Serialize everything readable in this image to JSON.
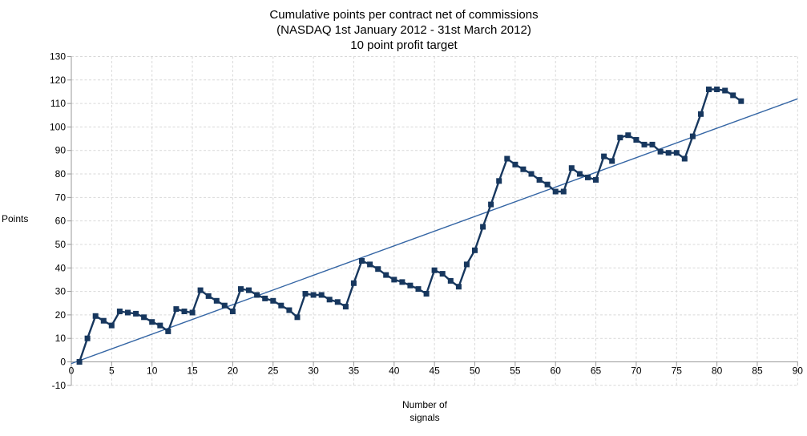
{
  "chart_data": {
    "type": "line",
    "title_lines": [
      "Cumulative points per contract net of commissions",
      "(NASDAQ 1st January 2012 - 31st March 2012)",
      "10 point profit target"
    ],
    "ylabel": "Points",
    "xlabel_lines": [
      "Number of",
      "signals"
    ],
    "x_axis": {
      "min": 0,
      "max": 90,
      "tick_step": 5,
      "tick_labels": [
        "0",
        "5",
        "10",
        "15",
        "20",
        "25",
        "30",
        "35",
        "40",
        "45",
        "50",
        "55",
        "60",
        "65",
        "70",
        "75",
        "80",
        "85",
        "90"
      ]
    },
    "y_axis": {
      "min": -10,
      "max": 130,
      "tick_step": 10,
      "tick_labels": [
        "-10",
        "0",
        "10",
        "20",
        "30",
        "40",
        "50",
        "60",
        "70",
        "80",
        "90",
        "100",
        "110",
        "120",
        "130"
      ]
    },
    "grid": true,
    "legend": "none",
    "series": [
      {
        "name": "Cumulative points",
        "style": "line+markers",
        "marker": "square",
        "color": "#17375e",
        "x": [
          1,
          2,
          3,
          4,
          5,
          6,
          7,
          8,
          9,
          10,
          11,
          12,
          13,
          14,
          15,
          16,
          17,
          18,
          19,
          20,
          21,
          22,
          23,
          24,
          25,
          26,
          27,
          28,
          29,
          30,
          31,
          32,
          33,
          34,
          35,
          36,
          37,
          38,
          39,
          40,
          41,
          42,
          43,
          44,
          45,
          46,
          47,
          48,
          49,
          50,
          51,
          52,
          53,
          54,
          55,
          56,
          57,
          58,
          59,
          60,
          61,
          62,
          63,
          64,
          65,
          66,
          67,
          68,
          69,
          70,
          71,
          72,
          73,
          74,
          75,
          76,
          77,
          78,
          79,
          80,
          81,
          82,
          83
        ],
        "y": [
          0,
          10,
          19.5,
          17.5,
          15.5,
          21.5,
          21,
          20.5,
          19,
          17,
          15.5,
          13,
          22.5,
          21.5,
          21,
          30.5,
          28,
          26,
          24,
          21.5,
          31,
          30.5,
          28.5,
          27,
          26,
          24,
          22,
          19,
          29,
          28.5,
          28.5,
          26.5,
          25.5,
          23.5,
          33.5,
          43,
          41.5,
          39.5,
          37,
          35,
          34,
          32.5,
          31,
          29,
          39,
          37.5,
          34.5,
          32,
          41.5,
          47.5,
          57.5,
          67,
          77,
          86.5,
          84,
          82,
          80,
          77.5,
          75.5,
          72.5,
          72.5,
          82.5,
          80,
          78.5,
          77.5,
          87.5,
          85.5,
          95.5,
          96.5,
          94.5,
          92.5,
          92.5,
          89.5,
          89,
          89,
          86.5,
          96,
          105.5,
          116,
          116,
          115.5,
          113.5,
          111
        ]
      },
      {
        "name": "Linear trend",
        "style": "line",
        "color": "#3465a4",
        "x": [
          0,
          90
        ],
        "y": [
          -0.7,
          112
        ]
      }
    ],
    "colors": {
      "grid": "#d9d9d9",
      "axis": "#9a9a9a",
      "text": "#000000",
      "background": "#ffffff"
    }
  }
}
